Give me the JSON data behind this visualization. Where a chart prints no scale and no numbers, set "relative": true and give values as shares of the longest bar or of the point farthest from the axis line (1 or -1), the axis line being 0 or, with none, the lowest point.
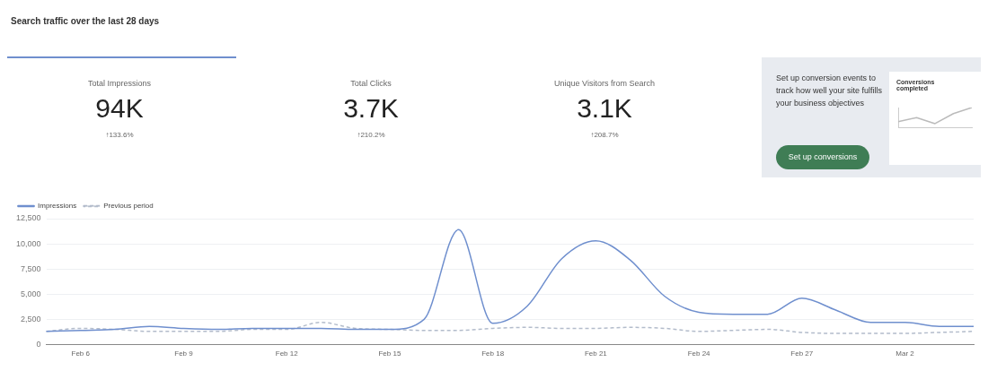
{
  "chart_data": [
    {
      "type": "other",
      "title": "Search traffic over the last 28 days",
      "annotations": [
        "Total Impressions",
        "94K",
        "↑133.6%",
        "Total Clicks",
        "3.7K",
        "↑210.2%",
        "Unique Visitors from Search",
        "3.1K",
        "↑208.7%",
        "Set up conversion events to track how well your site fulfills your business objectives",
        "Set up conversions"
      ]
    },
    {
      "type": "line",
      "title": "Conversions completed",
      "relative": true,
      "categories": [
        null,
        null,
        null,
        null,
        null
      ],
      "series": [
        {
          "color": "#bbbbbb",
          "line_style": "solid",
          "values": [
            0.3,
            0.5,
            0.2,
            0.7,
            1
          ]
        }
      ]
    },
    {
      "type": "line",
      "categories": [
        null,
        "Feb 6",
        null,
        null,
        "Feb 9",
        null,
        null,
        "Feb 12",
        null,
        null,
        "Feb 15",
        null,
        null,
        "Feb 18",
        null,
        null,
        "Feb 21",
        null,
        null,
        "Feb 24",
        null,
        null,
        "Feb 27",
        null,
        null,
        "Mar 2",
        null,
        null
      ],
      "series": [
        {
          "name": "Impressions",
          "color": "#6f8fce",
          "line_style": "solid",
          "values": [
            1300,
            1400,
            1500,
            1800,
            1600,
            1500,
            1600,
            1600,
            1600,
            1500,
            1500,
            2500,
            11400,
            2100,
            3800,
            8500,
            10300,
            8400,
            4800,
            3200,
            3000,
            3000,
            4600,
            3400,
            2200,
            2200,
            1800,
            1800
          ]
        },
        {
          "name": "Previous period",
          "color": "#b3bccb",
          "line_style": "dashed",
          "values": [
            1300,
            1600,
            1500,
            1300,
            1300,
            1300,
            1500,
            1500,
            2200,
            1600,
            1500,
            1400,
            1400,
            1600,
            1700,
            1600,
            1600,
            1700,
            1600,
            1300,
            1400,
            1500,
            1200,
            1100,
            1100,
            1100,
            1200,
            1300
          ]
        }
      ],
      "ylim": [
        0,
        12500
      ],
      "yticks": [
        0,
        {
          "value": 2500,
          "label": "2,500"
        },
        {
          "value": 5000,
          "label": "5,000"
        },
        {
          "value": 7500,
          "label": "7,500"
        },
        {
          "value": 10000,
          "label": "10,000"
        },
        {
          "value": 12500,
          "label": "12,500"
        }
      ],
      "grid": "y",
      "legend": "top left",
      "marker": "none"
    }
  ]
}
